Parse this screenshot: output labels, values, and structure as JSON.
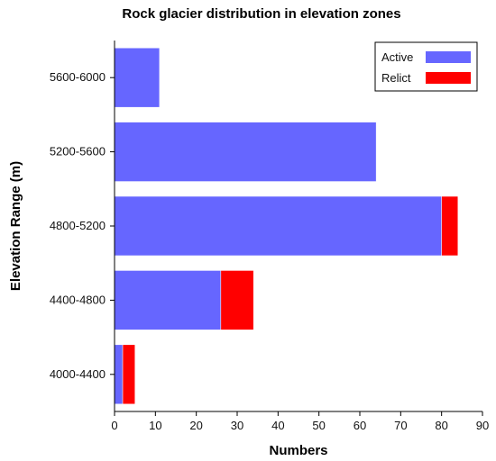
{
  "chart_data": {
    "type": "bar",
    "orientation": "horizontal",
    "stacked": true,
    "title": "Rock glacier distribution in elevation zones",
    "xlabel": "Numbers",
    "ylabel": "Elevation Range (m)",
    "categories": [
      "4000-4400",
      "4400-4800",
      "4800-5200",
      "5200-5600",
      "5600-6000"
    ],
    "series": [
      {
        "name": "Active",
        "color": "#6666ff",
        "values": [
          2,
          26,
          80,
          64,
          11
        ]
      },
      {
        "name": "Relict",
        "color": "#ff0000",
        "values": [
          3,
          8,
          4,
          0,
          0
        ]
      }
    ],
    "xlim": [
      0,
      90
    ],
    "xticks": [
      "0",
      "10",
      "20",
      "30",
      "40",
      "50",
      "60",
      "70",
      "80",
      "90"
    ],
    "grid": false,
    "legend_position": "top-right"
  }
}
